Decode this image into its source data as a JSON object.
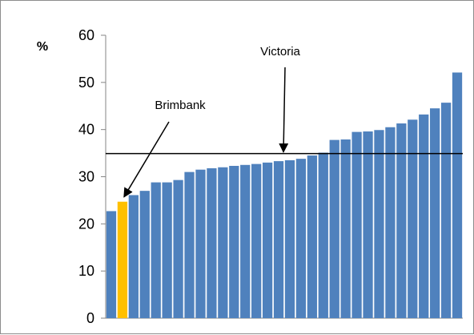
{
  "chart_data": {
    "type": "bar",
    "ylabel": "%",
    "ylim": [
      0,
      60
    ],
    "yticks": [
      0,
      10,
      20,
      30,
      40,
      50,
      60
    ],
    "grid": false,
    "legend": "none",
    "values": [
      22.7,
      24.7,
      26.1,
      27.0,
      28.8,
      28.8,
      29.3,
      31.0,
      31.5,
      31.8,
      32.0,
      32.3,
      32.5,
      32.7,
      33.0,
      33.3,
      33.5,
      33.8,
      34.5,
      35.1,
      37.8,
      37.9,
      39.5,
      39.6,
      39.9,
      40.5,
      41.3,
      42.1,
      43.2,
      44.5,
      45.7,
      52.1
    ],
    "highlight_index": 1,
    "bar_color": "#4f81bd",
    "highlight_color": "#ffc000",
    "reference_line": {
      "label": "Victoria",
      "value": 34.9
    },
    "annotations": [
      {
        "text": "Victoria",
        "points_to": "reference_line"
      },
      {
        "text": "Brimbank",
        "points_to": "highlighted_bar"
      }
    ]
  }
}
